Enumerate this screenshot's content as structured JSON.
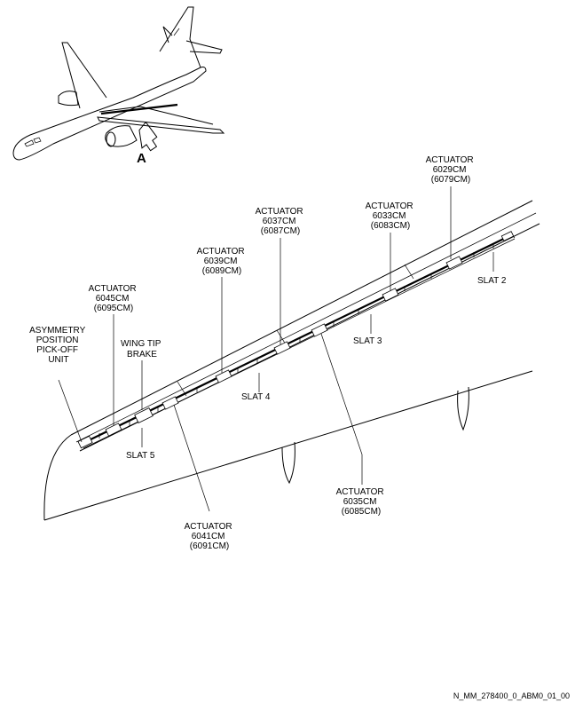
{
  "view_label": "A",
  "labels": {
    "asymmetry": [
      "ASYMMETRY",
      "POSITION",
      "PICK-OFF",
      "UNIT"
    ],
    "wingtip": [
      "WING TIP",
      "BRAKE"
    ],
    "act_6045": [
      "ACTUATOR",
      "6045CM",
      "(6095CM)"
    ],
    "act_6039": [
      "ACTUATOR",
      "6039CM",
      "(6089CM)"
    ],
    "act_6037": [
      "ACTUATOR",
      "6037CM",
      "(6087CM)"
    ],
    "act_6033": [
      "ACTUATOR",
      "6033CM",
      "(6083CM)"
    ],
    "act_6029": [
      "ACTUATOR",
      "6029CM",
      "(6079CM)"
    ],
    "act_6041": [
      "ACTUATOR",
      "6041CM",
      "(6091CM)"
    ],
    "act_6035": [
      "ACTUATOR",
      "6035CM",
      "(6085CM)"
    ],
    "slat2": "SLAT 2",
    "slat3": "SLAT 3",
    "slat4": "SLAT 4",
    "slat5": "SLAT 5"
  },
  "figure_ref": "N_MM_278400_0_ABM0_01_00"
}
